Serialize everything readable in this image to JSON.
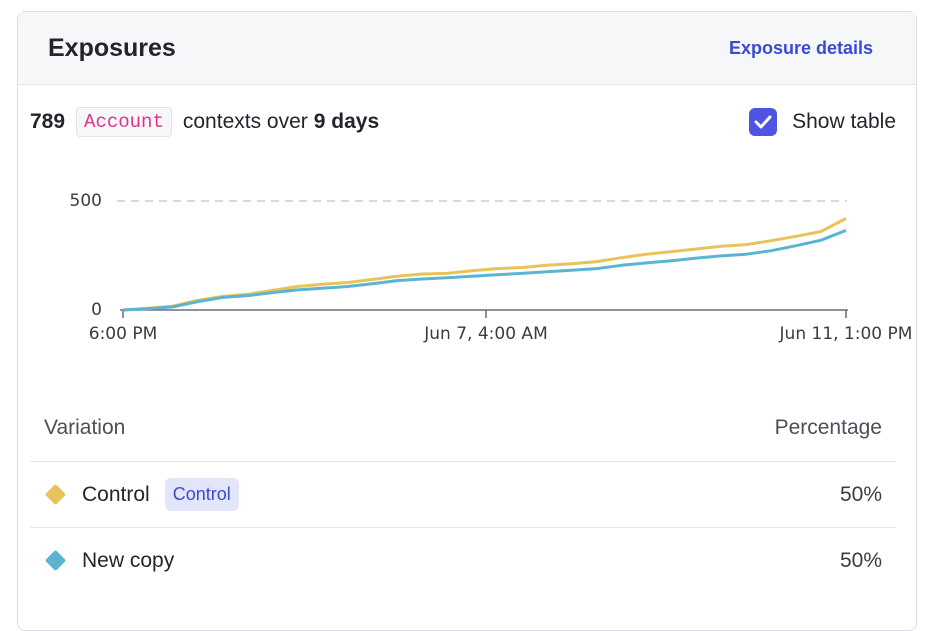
{
  "header": {
    "title": "Exposures",
    "details_link": "Exposure details"
  },
  "summary": {
    "count": "789",
    "context_kind": "Account",
    "middle_text": "contexts over",
    "duration": "9 days",
    "show_table_label": "Show table",
    "show_table_checked": true
  },
  "chart_data": {
    "type": "line",
    "x_tick_labels": [
      "6:00 PM",
      "Jun 7, 4:00 AM",
      "Jun 11, 1:00 PM"
    ],
    "y_tick_labels": [
      "500",
      "0"
    ],
    "ylim": [
      0,
      500
    ],
    "series": [
      {
        "name": "Control",
        "color": "#e8c35a",
        "values": [
          0,
          8,
          18,
          45,
          62,
          72,
          90,
          108,
          118,
          126,
          140,
          155,
          165,
          168,
          180,
          190,
          195,
          205,
          212,
          222,
          240,
          256,
          268,
          280,
          292,
          300,
          318,
          338,
          360,
          420
        ]
      },
      {
        "name": "New copy",
        "color": "#5ab4d2",
        "values": [
          0,
          6,
          14,
          38,
          58,
          66,
          80,
          92,
          100,
          108,
          120,
          135,
          142,
          148,
          155,
          162,
          168,
          175,
          182,
          190,
          205,
          216,
          226,
          238,
          248,
          256,
          272,
          295,
          320,
          365
        ]
      }
    ]
  },
  "table": {
    "headers": {
      "variation": "Variation",
      "percentage": "Percentage"
    },
    "rows": [
      {
        "name": "Control",
        "badge": "Control",
        "percentage": "50%",
        "color": "#e8c35a"
      },
      {
        "name": "New copy",
        "badge": "",
        "percentage": "50%",
        "color": "#5ab4d2"
      }
    ]
  }
}
